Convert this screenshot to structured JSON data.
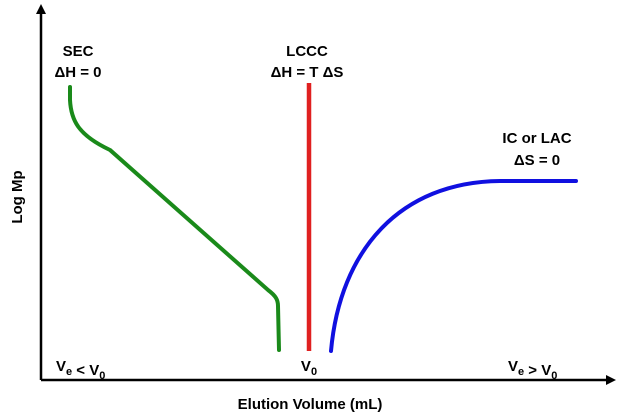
{
  "chart_data": {
    "type": "line",
    "title": "",
    "xlabel": "Elution Volume (mL)",
    "ylabel": "Log Mp",
    "grid": false,
    "legend": "none",
    "x_tick_labels": {
      "left": "Ve < V0",
      "center": "V0",
      "right": "Ve > V0"
    },
    "series": [
      {
        "name": "SEC",
        "annotation": [
          "SEC",
          "ΔH = 0"
        ],
        "color": "#1a8a1a",
        "shape": "decreasing curve that drops vertically near V0"
      },
      {
        "name": "LCCC",
        "annotation": [
          "LCCC",
          "ΔH = T ΔS"
        ],
        "color": "#e02020",
        "shape": "vertical line at V0"
      },
      {
        "name": "IC or LAC",
        "annotation": [
          "IC or LAC",
          "ΔS = 0"
        ],
        "color": "#1010e0",
        "shape": "increasing curve that levels off"
      }
    ]
  }
}
